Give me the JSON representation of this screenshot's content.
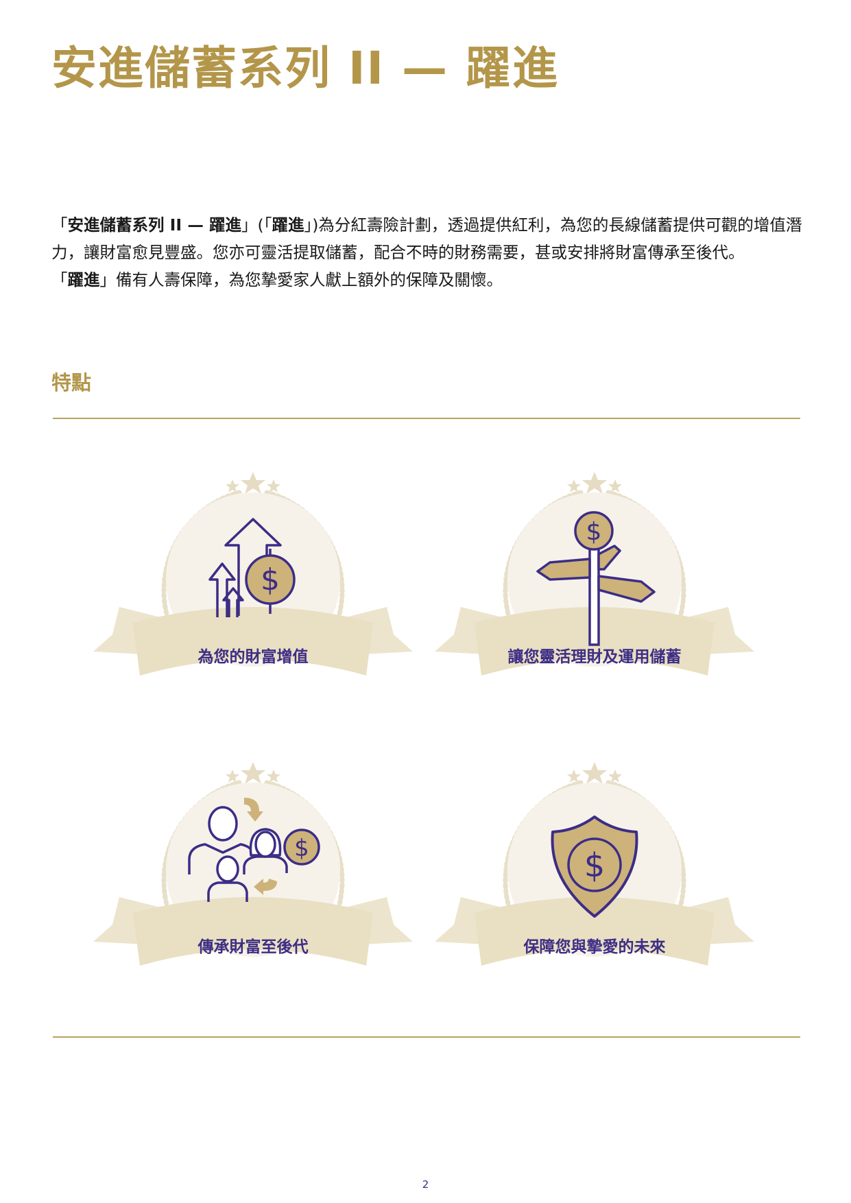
{
  "title": "安進儲蓄系列 II — 躍進",
  "intro": {
    "q1_open": "「",
    "product_name": "安進儲蓄系列 II — 躍進",
    "q1_close": "」(「",
    "short_name": "躍進",
    "q2_close": "」)",
    "sentence_1": "為分紅壽險計劃，透過提供紅利，為您的長線儲蓄提供可觀的增值潛力，讓財富愈見豐盛。您亦可靈活提取儲蓄，配合不時的財務需要，甚或安排將財富傳承至後代。",
    "q3_open": "「",
    "short_name_2": "躍進",
    "q3_close": "」",
    "sentence_2": "備有人壽保障，為您摯愛家人獻上額外的保障及關懷。"
  },
  "features": {
    "heading": "特點",
    "items": [
      {
        "label": "為您的財富增值",
        "icon": "growth-arrows-dollar-icon"
      },
      {
        "label": "讓您靈活理財及運用儲蓄",
        "icon": "signpost-dollar-icon"
      },
      {
        "label": "傳承財富至後代",
        "icon": "family-legacy-dollar-icon"
      },
      {
        "label": "保障您與摯愛的未來",
        "icon": "shield-dollar-icon"
      }
    ]
  },
  "colors": {
    "gold": "#b3964a",
    "purple": "#3c2d86",
    "beige": "#e9dfc2",
    "cream": "#f6f2ea"
  },
  "page_number": "2"
}
